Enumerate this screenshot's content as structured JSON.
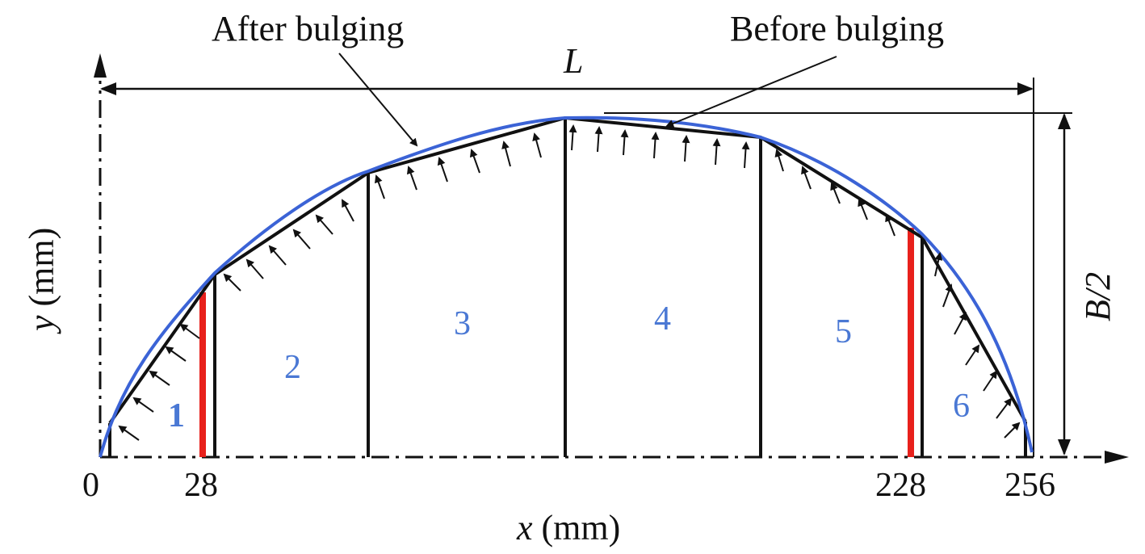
{
  "labels": {
    "after_bulging": "After bulging",
    "before_bulging": "Before bulging",
    "length_symbol": "L",
    "half_width_symbol": "B/2",
    "x_axis": "x (mm)",
    "y_axis": "y (mm)"
  },
  "x_ticks": [
    "0",
    "28",
    "228",
    "256"
  ],
  "regions": [
    "1",
    "2",
    "3",
    "4",
    "5",
    "6"
  ],
  "colors": {
    "after_curve": "#3b63d6",
    "before_polyline": "#111111",
    "marker_lines": "#e8211c",
    "region_labels": "#4a78d4"
  }
}
